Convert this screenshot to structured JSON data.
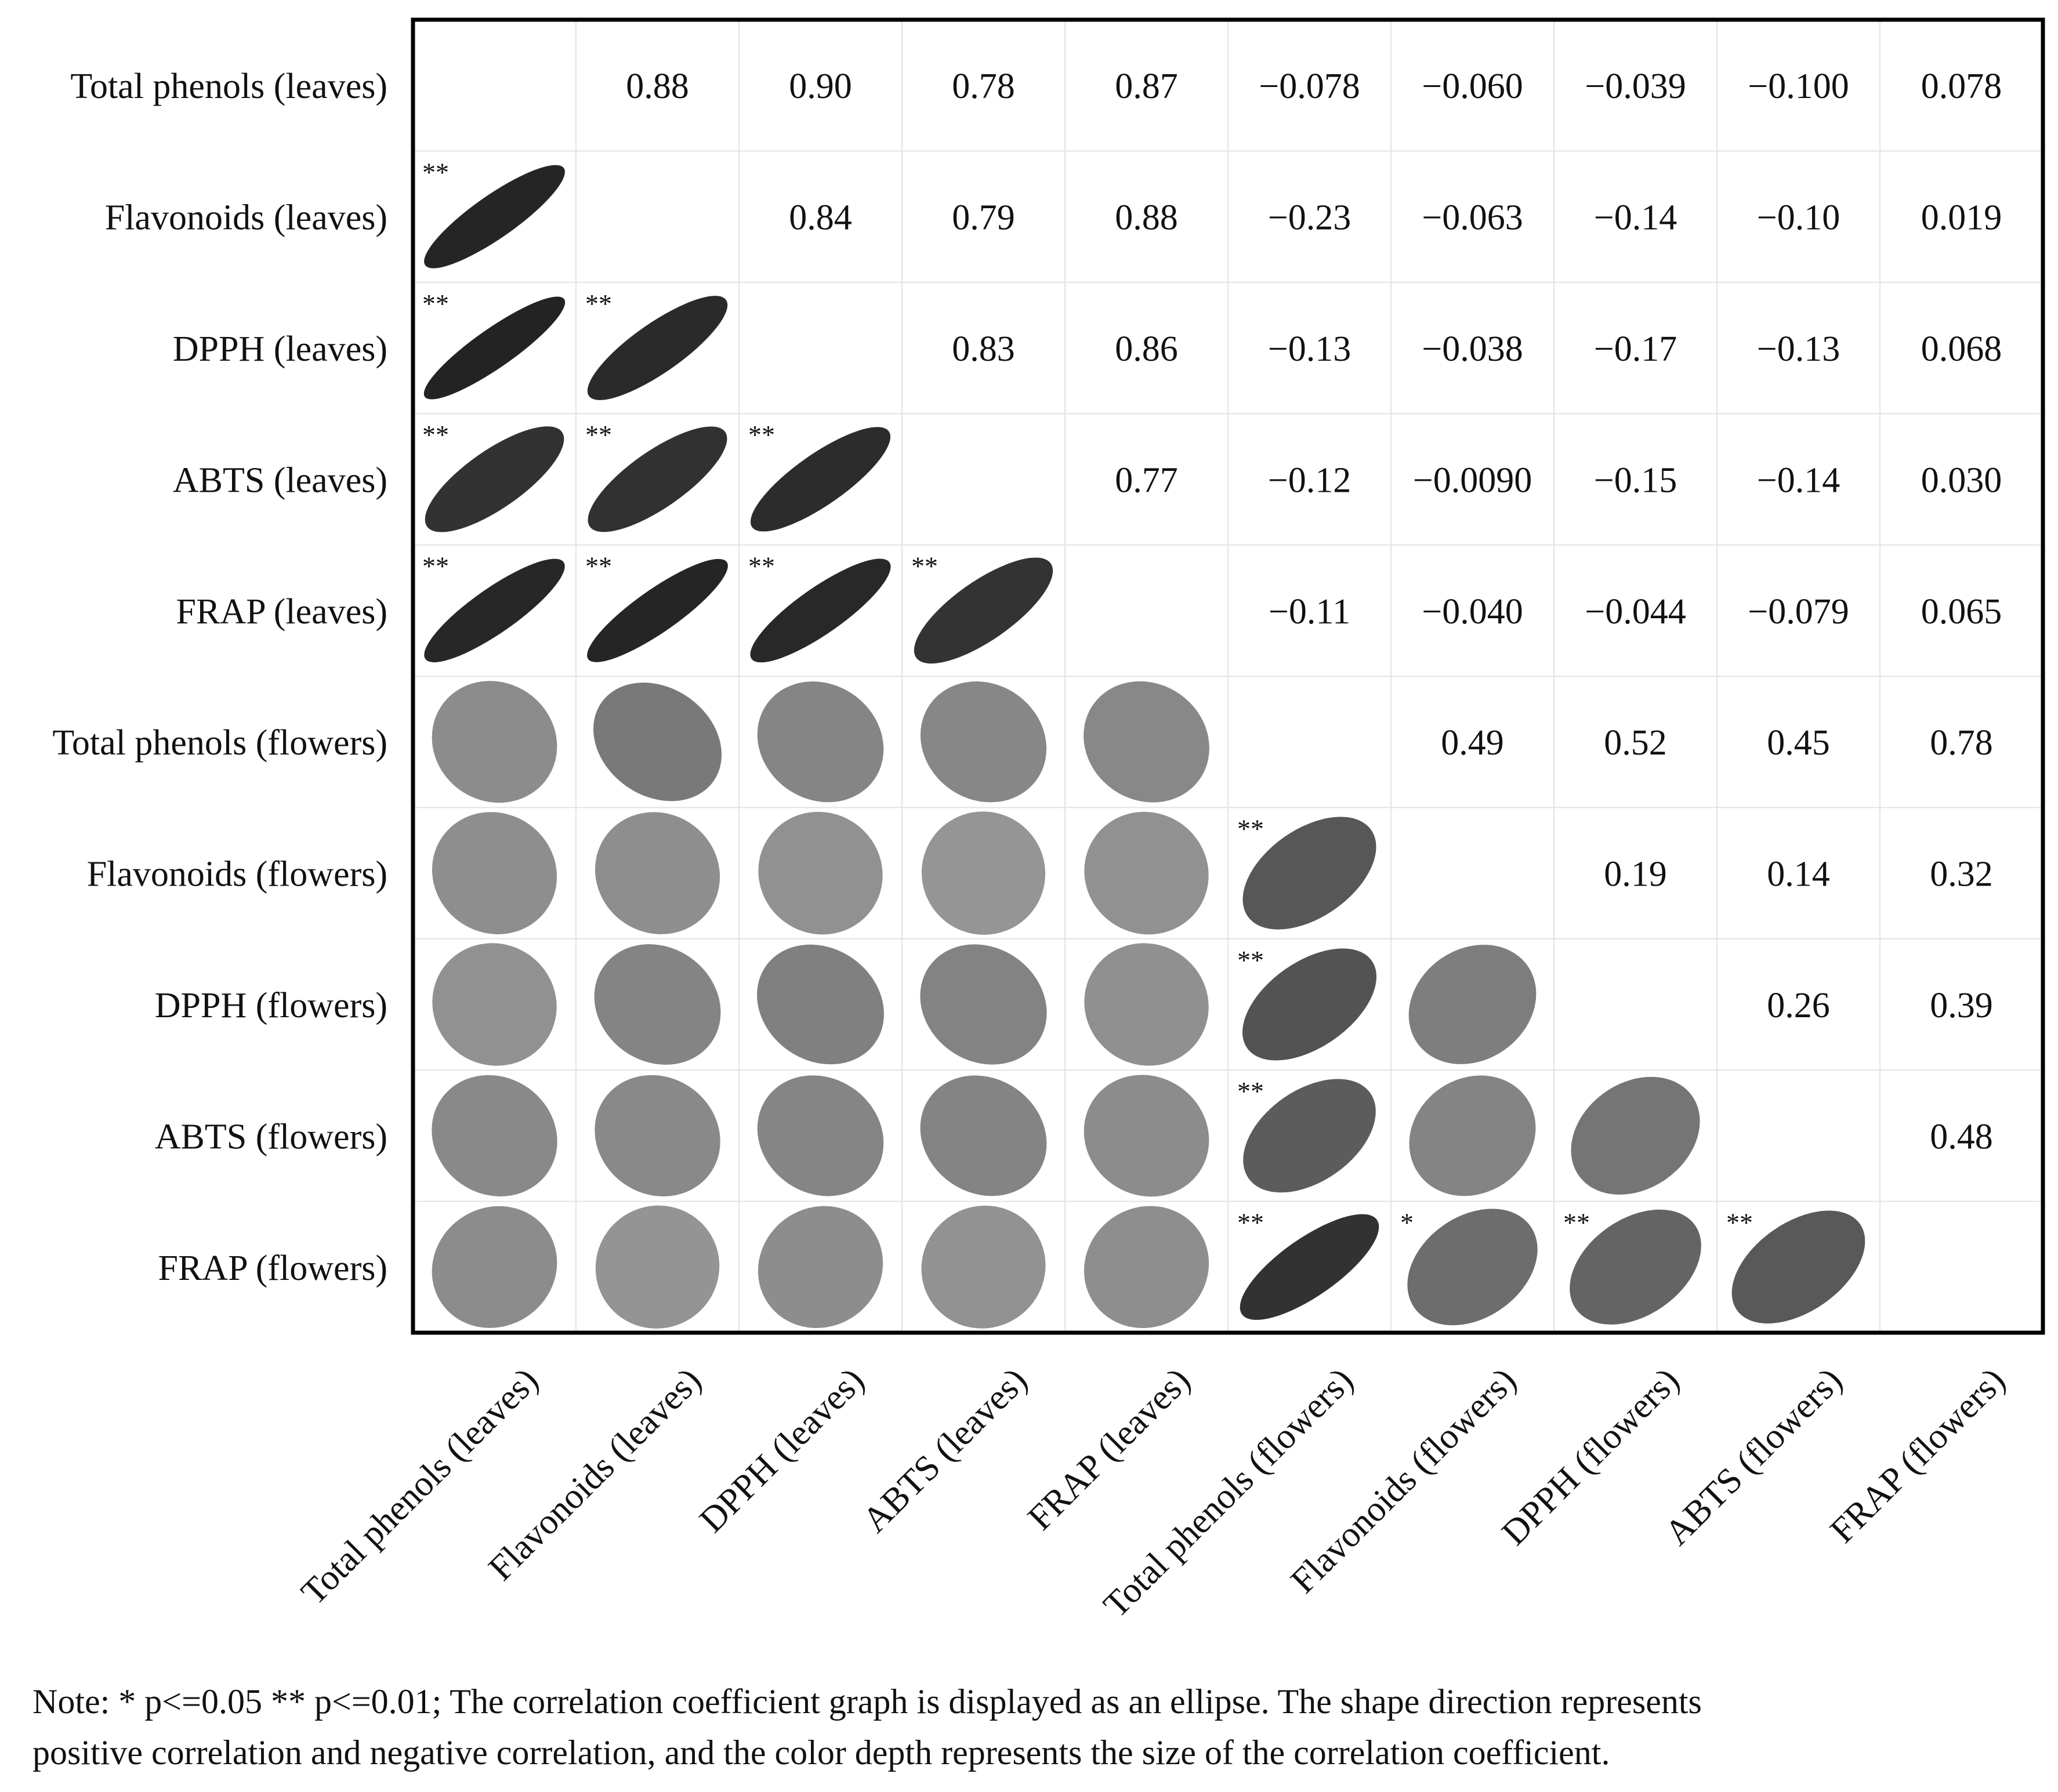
{
  "chart_data": {
    "type": "heatmap",
    "subtype": "correlation-ellipse-matrix",
    "variables": [
      "Total phenols (leaves)",
      "Flavonoids (leaves)",
      "DPPH (leaves)",
      "ABTS (leaves)",
      "FRAP (leaves)",
      "Total phenols (flowers)",
      "Flavonoids (flowers)",
      "DPPH (flowers)",
      "ABTS (flowers)",
      "FRAP (flowers)"
    ],
    "correlations": [
      {
        "row": 0,
        "col": 1,
        "value": 0.88,
        "label": "0.88",
        "sig": "**"
      },
      {
        "row": 0,
        "col": 2,
        "value": 0.9,
        "label": "0.90",
        "sig": "**"
      },
      {
        "row": 0,
        "col": 3,
        "value": 0.78,
        "label": "0.78",
        "sig": "**"
      },
      {
        "row": 0,
        "col": 4,
        "value": 0.87,
        "label": "0.87",
        "sig": "**"
      },
      {
        "row": 0,
        "col": 5,
        "value": -0.078,
        "label": "−0.078",
        "sig": ""
      },
      {
        "row": 0,
        "col": 6,
        "value": -0.06,
        "label": "−0.060",
        "sig": ""
      },
      {
        "row": 0,
        "col": 7,
        "value": -0.039,
        "label": "−0.039",
        "sig": ""
      },
      {
        "row": 0,
        "col": 8,
        "value": -0.1,
        "label": "−0.100",
        "sig": ""
      },
      {
        "row": 0,
        "col": 9,
        "value": 0.078,
        "label": "0.078",
        "sig": ""
      },
      {
        "row": 1,
        "col": 2,
        "value": 0.84,
        "label": "0.84",
        "sig": "**"
      },
      {
        "row": 1,
        "col": 3,
        "value": 0.79,
        "label": "0.79",
        "sig": "**"
      },
      {
        "row": 1,
        "col": 4,
        "value": 0.88,
        "label": "0.88",
        "sig": "**"
      },
      {
        "row": 1,
        "col": 5,
        "value": -0.23,
        "label": "−0.23",
        "sig": ""
      },
      {
        "row": 1,
        "col": 6,
        "value": -0.063,
        "label": "−0.063",
        "sig": ""
      },
      {
        "row": 1,
        "col": 7,
        "value": -0.14,
        "label": "−0.14",
        "sig": ""
      },
      {
        "row": 1,
        "col": 8,
        "value": -0.1,
        "label": "−0.10",
        "sig": ""
      },
      {
        "row": 1,
        "col": 9,
        "value": 0.019,
        "label": "0.019",
        "sig": ""
      },
      {
        "row": 2,
        "col": 3,
        "value": 0.83,
        "label": "0.83",
        "sig": "**"
      },
      {
        "row": 2,
        "col": 4,
        "value": 0.86,
        "label": "0.86",
        "sig": "**"
      },
      {
        "row": 2,
        "col": 5,
        "value": -0.13,
        "label": "−0.13",
        "sig": ""
      },
      {
        "row": 2,
        "col": 6,
        "value": -0.038,
        "label": "−0.038",
        "sig": ""
      },
      {
        "row": 2,
        "col": 7,
        "value": -0.17,
        "label": "−0.17",
        "sig": ""
      },
      {
        "row": 2,
        "col": 8,
        "value": -0.13,
        "label": "−0.13",
        "sig": ""
      },
      {
        "row": 2,
        "col": 9,
        "value": 0.068,
        "label": "0.068",
        "sig": ""
      },
      {
        "row": 3,
        "col": 4,
        "value": 0.77,
        "label": "0.77",
        "sig": "**"
      },
      {
        "row": 3,
        "col": 5,
        "value": -0.12,
        "label": "−0.12",
        "sig": ""
      },
      {
        "row": 3,
        "col": 6,
        "value": -0.009,
        "label": "−0.0090",
        "sig": ""
      },
      {
        "row": 3,
        "col": 7,
        "value": -0.15,
        "label": "−0.15",
        "sig": ""
      },
      {
        "row": 3,
        "col": 8,
        "value": -0.14,
        "label": "−0.14",
        "sig": ""
      },
      {
        "row": 3,
        "col": 9,
        "value": 0.03,
        "label": "0.030",
        "sig": ""
      },
      {
        "row": 4,
        "col": 5,
        "value": -0.11,
        "label": "−0.11",
        "sig": ""
      },
      {
        "row": 4,
        "col": 6,
        "value": -0.04,
        "label": "−0.040",
        "sig": ""
      },
      {
        "row": 4,
        "col": 7,
        "value": -0.044,
        "label": "−0.044",
        "sig": ""
      },
      {
        "row": 4,
        "col": 8,
        "value": -0.079,
        "label": "−0.079",
        "sig": ""
      },
      {
        "row": 4,
        "col": 9,
        "value": 0.065,
        "label": "0.065",
        "sig": ""
      },
      {
        "row": 5,
        "col": 6,
        "value": 0.49,
        "label": "0.49",
        "sig": "**"
      },
      {
        "row": 5,
        "col": 7,
        "value": 0.52,
        "label": "0.52",
        "sig": "**"
      },
      {
        "row": 5,
        "col": 8,
        "value": 0.45,
        "label": "0.45",
        "sig": "**"
      },
      {
        "row": 5,
        "col": 9,
        "value": 0.78,
        "label": "0.78",
        "sig": "**"
      },
      {
        "row": 6,
        "col": 7,
        "value": 0.19,
        "label": "0.19",
        "sig": ""
      },
      {
        "row": 6,
        "col": 8,
        "value": 0.14,
        "label": "0.14",
        "sig": ""
      },
      {
        "row": 6,
        "col": 9,
        "value": 0.32,
        "label": "0.32",
        "sig": "*"
      },
      {
        "row": 7,
        "col": 8,
        "value": 0.26,
        "label": "0.26",
        "sig": ""
      },
      {
        "row": 7,
        "col": 9,
        "value": 0.39,
        "label": "0.39",
        "sig": "**"
      },
      {
        "row": 8,
        "col": 9,
        "value": 0.48,
        "label": "0.48",
        "sig": "**"
      }
    ]
  },
  "note": {
    "line1": "Note: * p<=0.05  ** p<=0.01; The correlation coefficient graph is displayed as an ellipse. The shape direction represents",
    "line2": "positive correlation and negative correlation, and the color depth represents the size of the correlation coefficient."
  }
}
